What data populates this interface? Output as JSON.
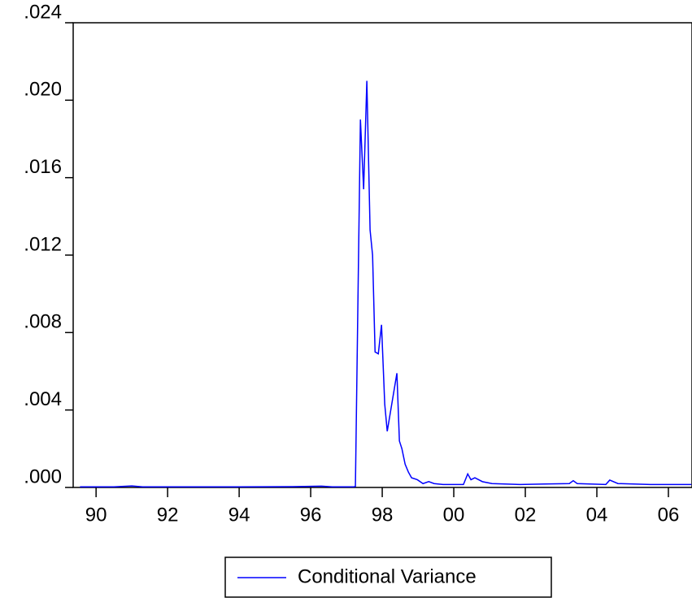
{
  "chart_data": {
    "type": "line",
    "x": [
      1989.55,
      1990.5,
      1991.0,
      1991.3,
      1992.5,
      1994.0,
      1995.5,
      1996.3,
      1996.6,
      1997.2,
      1997.25,
      1997.39,
      1997.48,
      1997.57,
      1997.66,
      1997.73,
      1997.8,
      1997.89,
      1997.98,
      1998.07,
      1998.14,
      1998.41,
      1998.48,
      1998.55,
      1998.64,
      1998.73,
      1998.82,
      1998.98,
      1999.14,
      1999.3,
      1999.45,
      1999.7,
      2000.27,
      2000.39,
      2000.48,
      2000.59,
      2000.8,
      2001.07,
      2001.86,
      2002.55,
      2003.23,
      2003.34,
      2003.45,
      2004.25,
      2004.36,
      2004.59,
      2005.5,
      2006.64
    ],
    "series": [
      {
        "name": "Conditional Variance",
        "color": "#0000ff",
        "values": [
          3e-05,
          3e-05,
          8e-05,
          3e-05,
          3e-05,
          3e-05,
          4e-05,
          7e-05,
          3e-05,
          3e-05,
          5e-05,
          0.019,
          0.0154,
          0.021,
          0.0133,
          0.012,
          0.007,
          0.0069,
          0.0084,
          0.0043,
          0.0029,
          0.0059,
          0.0024,
          0.002,
          0.0012,
          0.0008,
          0.0005,
          0.0004,
          0.0002,
          0.0003,
          0.0002,
          0.00015,
          0.00015,
          0.0007,
          0.0004,
          0.0005,
          0.0003,
          0.0002,
          0.00015,
          0.00018,
          0.0002,
          0.00035,
          0.0002,
          0.00015,
          0.00038,
          0.0002,
          0.00015,
          0.00015
        ]
      }
    ],
    "xlim": [
      1989.36,
      2006.66
    ],
    "xticks": [
      {
        "value": 1990,
        "label": "90"
      },
      {
        "value": 1992,
        "label": "92"
      },
      {
        "value": 1994,
        "label": "94"
      },
      {
        "value": 1996,
        "label": "96"
      },
      {
        "value": 1998,
        "label": "98"
      },
      {
        "value": 2000,
        "label": "00"
      },
      {
        "value": 2002,
        "label": "02"
      },
      {
        "value": 2004,
        "label": "04"
      },
      {
        "value": 2006,
        "label": "06"
      }
    ],
    "ylim": [
      0,
      0.024
    ],
    "yticks": [
      {
        "value": 0,
        "label": ".000"
      },
      {
        "value": 0.004,
        "label": ".004"
      },
      {
        "value": 0.008,
        "label": ".008"
      },
      {
        "value": 0.012,
        "label": ".012"
      },
      {
        "value": 0.016,
        "label": ".016"
      },
      {
        "value": 0.02,
        "label": ".020"
      },
      {
        "value": 0.024,
        "label": ".024"
      }
    ],
    "legend": "bottom"
  }
}
